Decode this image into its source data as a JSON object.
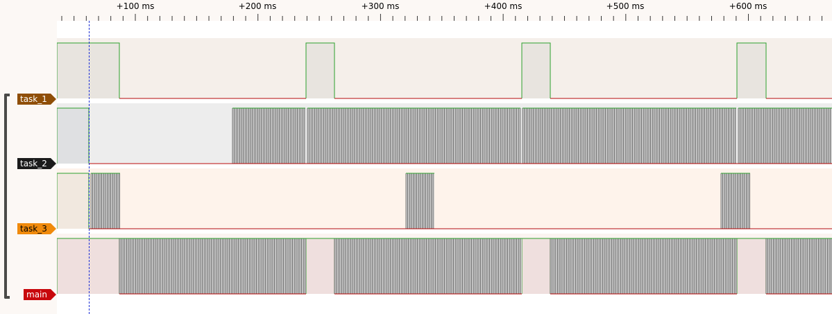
{
  "timeline": {
    "tick_labels": [
      "+100 ms",
      "+200 ms",
      "+300 ms",
      "+400 ms",
      "+500 ms",
      "+600 ms"
    ]
  },
  "channels": [
    {
      "id": "task_1",
      "label": "task_1",
      "tag_color": "#8f4e07",
      "text_color": "#ffffff",
      "bg": "#f5efea",
      "hi_bg": "#e8e4df"
    },
    {
      "id": "task_2",
      "label": "task_2",
      "tag_color": "#1b1b1b",
      "text_color": "#ffffff",
      "bg": "#ededed",
      "hi_bg": "#dfe0e2"
    },
    {
      "id": "task_3",
      "label": "task_3",
      "tag_color": "#f08a0c",
      "text_color": "#000000",
      "bg": "#fef3eb",
      "hi_bg": "#f1e8df"
    },
    {
      "id": "main",
      "label": "main",
      "tag_color": "#c8080c",
      "text_color": "#ffffff",
      "bg": "#fbf4f1",
      "hi_bg": "#efdfde"
    }
  ],
  "colors": {
    "high_edge": "#2ca02c",
    "low_edge": "#b00000",
    "cursor": "#1c2fd6",
    "bracket": "#4a4a48"
  }
}
